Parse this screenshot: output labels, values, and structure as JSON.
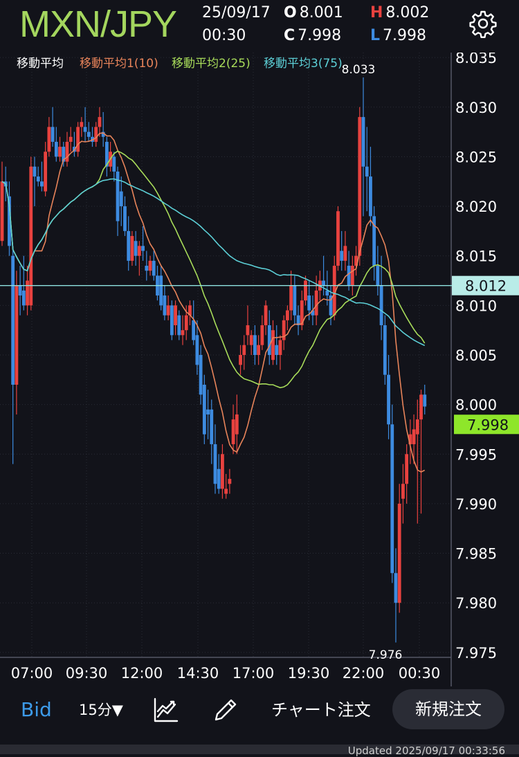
{
  "header": {
    "pair": "MXN/JPY",
    "date": "25/09/17",
    "time": "00:30",
    "open_label": "O",
    "open": "8.001",
    "high_label": "H",
    "high": "8.002",
    "close_label": "C",
    "close": "7.998",
    "low_label": "L",
    "low": "7.998",
    "settings_icon": "gear-icon"
  },
  "chart_data": {
    "type": "candlestick",
    "symbol": "MXN/JPY",
    "interval": "15分",
    "legend": {
      "title": "移動平均",
      "ma1": "移動平均1(10)",
      "ma2": "移動平均2(25)",
      "ma3": "移動平均3(75)"
    },
    "colors": {
      "up": "#e8423f",
      "down": "#3d8be0",
      "ma1": "#e8845a",
      "ma2": "#a8dc5a",
      "ma3": "#5ccfd6",
      "price_line": "#8fe3e0",
      "current_price_bg": "#8ee62a",
      "background": "#12131a"
    },
    "y_axis": {
      "range": [
        7.9745,
        8.0355
      ],
      "ticks": [
        "8.035",
        "8.030",
        "8.025",
        "8.020",
        "8.015",
        "8.010",
        "8.005",
        "8.000",
        "7.995",
        "7.990",
        "7.985",
        "7.980",
        "7.975"
      ]
    },
    "x_axis": {
      "ticks": [
        "07:00",
        "09:30",
        "12:00",
        "14:30",
        "17:00",
        "19:30",
        "22:00",
        "00:30"
      ]
    },
    "annotations": {
      "max_label": "8.033",
      "min_label": "7.976"
    },
    "price_line": {
      "value": 8.012,
      "label": "8.012"
    },
    "current_price": {
      "value": 7.998,
      "label": "7.998"
    },
    "candles": [
      [
        8.0165,
        8.0245,
        8.016,
        8.0225
      ],
      [
        8.0225,
        8.024,
        8.0205,
        8.022
      ],
      [
        8.021,
        8.0225,
        8.015,
        8.016
      ],
      [
        8.015,
        8.016,
        7.994,
        8.002
      ],
      [
        8.002,
        8.0135,
        7.999,
        8.012
      ],
      [
        8.012,
        8.014,
        8.009,
        8.011
      ],
      [
        8.0115,
        8.015,
        8.0095,
        8.01
      ],
      [
        8.01,
        8.014,
        8.009,
        8.0125
      ],
      [
        8.01,
        8.025,
        8.0095,
        8.024
      ],
      [
        8.024,
        8.025,
        8.02,
        8.023
      ],
      [
        8.023,
        8.024,
        8.022,
        8.0225
      ],
      [
        8.0225,
        8.0245,
        8.0215,
        8.022
      ],
      [
        8.0215,
        8.0265,
        8.021,
        8.0255
      ],
      [
        8.0255,
        8.029,
        8.025,
        8.028
      ],
      [
        8.028,
        8.03,
        8.026,
        8.0265
      ],
      [
        8.0265,
        8.028,
        8.0245,
        8.025
      ],
      [
        8.025,
        8.027,
        8.0245,
        8.026
      ],
      [
        8.026,
        8.0265,
        8.024,
        8.0245
      ],
      [
        8.0245,
        8.0275,
        8.024,
        8.0265
      ],
      [
        8.0265,
        8.028,
        8.0255,
        8.027
      ],
      [
        8.026,
        8.0275,
        8.025,
        8.0255
      ],
      [
        8.0255,
        8.0285,
        8.025,
        8.028
      ],
      [
        8.028,
        8.029,
        8.027,
        8.0285
      ],
      [
        8.028,
        8.03,
        8.0265,
        8.0275
      ],
      [
        8.0275,
        8.0285,
        8.0265,
        8.027
      ],
      [
        8.027,
        8.028,
        8.026,
        8.0265
      ],
      [
        8.0265,
        8.0285,
        8.026,
        8.028
      ],
      [
        8.028,
        8.03,
        8.027,
        8.029
      ],
      [
        8.0275,
        8.0295,
        8.026,
        8.027
      ],
      [
        8.0265,
        8.027,
        8.023,
        8.024
      ],
      [
        8.024,
        8.0265,
        8.0235,
        8.0255
      ],
      [
        8.025,
        8.0255,
        8.0225,
        8.0235
      ],
      [
        8.0235,
        8.024,
        8.017,
        8.0185
      ],
      [
        8.0215,
        8.023,
        8.018,
        8.02
      ],
      [
        8.02,
        8.021,
        8.017,
        8.0175
      ],
      [
        8.0175,
        8.019,
        8.0135,
        8.0145
      ],
      [
        8.0145,
        8.0175,
        8.014,
        8.017
      ],
      [
        8.0165,
        8.0175,
        8.014,
        8.015
      ],
      [
        8.015,
        8.0165,
        8.013,
        8.016
      ],
      [
        8.016,
        8.018,
        8.0145,
        8.0155
      ],
      [
        8.014,
        8.0155,
        8.0125,
        8.0135
      ],
      [
        8.0135,
        8.015,
        8.013,
        8.0145
      ],
      [
        8.0145,
        8.0155,
        8.0125,
        8.013
      ],
      [
        8.013,
        8.014,
        8.0105,
        8.011
      ],
      [
        8.013,
        8.014,
        8.0095,
        8.01
      ],
      [
        8.011,
        8.012,
        8.0085,
        8.009
      ],
      [
        8.009,
        8.011,
        8.0085,
        8.01
      ],
      [
        8.01,
        8.0105,
        8.0065,
        8.007
      ],
      [
        8.008,
        8.0105,
        8.007,
        8.01
      ],
      [
        8.009,
        8.0095,
        8.0065,
        8.007
      ],
      [
        8.007,
        8.009,
        8.006,
        8.0075
      ],
      [
        8.0075,
        8.01,
        8.0065,
        8.009
      ],
      [
        8.009,
        8.0105,
        8.008,
        8.01
      ],
      [
        8.0085,
        8.0105,
        8.006,
        8.0065
      ],
      [
        8.007,
        8.0085,
        8.003,
        8.004
      ],
      [
        8.005,
        8.006,
        8.0,
        8.001
      ],
      [
        8.002,
        8.003,
        7.996,
        7.997
      ],
      [
        7.9995,
        8.0015,
        7.9965,
        7.999
      ],
      [
        7.9995,
        8.0005,
        7.994,
        7.996
      ],
      [
        7.996,
        7.998,
        7.991,
        7.992
      ],
      [
        7.9935,
        7.995,
        7.991,
        7.9915
      ],
      [
        7.9915,
        7.996,
        7.9905,
        7.995
      ],
      [
        7.991,
        7.993,
        7.9905,
        7.9915
      ],
      [
        7.992,
        7.9935,
        7.991,
        7.9925
      ],
      [
        7.996,
        8.0,
        7.995,
        7.9985
      ],
      [
        7.997,
        8.001,
        7.995,
        7.999
      ],
      [
        8.004,
        8.006,
        8.003,
        8.005
      ],
      [
        8.005,
        8.007,
        8.0035,
        8.006
      ],
      [
        8.007,
        8.01,
        8.006,
        8.008
      ],
      [
        8.006,
        8.0075,
        8.005,
        8.007
      ],
      [
        8.007,
        8.008,
        8.004,
        8.005
      ],
      [
        8.005,
        8.007,
        8.004,
        8.006
      ],
      [
        8.006,
        8.009,
        8.0055,
        8.008
      ],
      [
        8.008,
        8.0105,
        8.007,
        8.01
      ],
      [
        8.008,
        8.0095,
        8.004,
        8.005
      ],
      [
        8.0045,
        8.0085,
        8.004,
        8.0075
      ],
      [
        8.006,
        8.008,
        8.004,
        8.005
      ],
      [
        8.005,
        8.007,
        8.0035,
        8.0065
      ],
      [
        8.0065,
        8.009,
        8.0055,
        8.0085
      ],
      [
        8.0085,
        8.01,
        8.0075,
        8.0095
      ],
      [
        8.0095,
        8.0135,
        8.0085,
        8.012
      ],
      [
        8.012,
        8.013,
        8.008,
        8.009
      ],
      [
        8.009,
        8.01,
        8.007,
        8.008
      ],
      [
        8.008,
        8.0115,
        8.0075,
        8.0105
      ],
      [
        8.0105,
        8.013,
        8.01,
        8.0125
      ],
      [
        8.011,
        8.0125,
        8.0085,
        8.0095
      ],
      [
        8.0095,
        8.011,
        8.008,
        8.009
      ],
      [
        8.009,
        8.013,
        8.008,
        8.0115
      ],
      [
        8.0115,
        8.0135,
        8.0105,
        8.0125
      ],
      [
        8.0125,
        8.015,
        8.011,
        8.012
      ],
      [
        8.0115,
        8.0135,
        8.01,
        8.011
      ],
      [
        8.011,
        8.012,
        8.008,
        8.009
      ],
      [
        8.009,
        8.015,
        8.0085,
        8.014
      ],
      [
        8.014,
        8.02,
        8.0135,
        8.0195
      ],
      [
        8.0155,
        8.0175,
        8.0135,
        8.0145
      ],
      [
        8.0145,
        8.0175,
        8.0135,
        8.016
      ],
      [
        8.014,
        8.0155,
        8.0115,
        8.012
      ],
      [
        8.012,
        8.015,
        8.011,
        8.014
      ],
      [
        8.014,
        8.016,
        8.013,
        8.015
      ],
      [
        8.015,
        8.03,
        8.014,
        8.029
      ],
      [
        8.029,
        8.033,
        8.019,
        8.024
      ],
      [
        8.024,
        8.028,
        8.0195,
        8.023
      ],
      [
        8.023,
        8.026,
        8.018,
        8.019
      ],
      [
        8.019,
        8.02,
        8.0125,
        8.014
      ],
      [
        8.014,
        8.016,
        8.011,
        8.012
      ],
      [
        8.012,
        8.015,
        8.0065,
        8.008
      ],
      [
        8.008,
        8.009,
        8.002,
        8.003
      ],
      [
        8.003,
        8.005,
        7.9965,
        7.998
      ],
      [
        7.998,
        8.0,
        7.982,
        7.983
      ],
      [
        7.983,
        7.9855,
        7.976,
        7.98
      ],
      [
        7.98,
        7.992,
        7.979,
        7.99
      ],
      [
        7.9905,
        7.994,
        7.988,
        7.992
      ],
      [
        7.992,
        7.996,
        7.99,
        7.995
      ],
      [
        7.996,
        7.9985,
        7.994,
        7.997
      ],
      [
        7.996,
        7.999,
        7.994,
        7.9975
      ],
      [
        7.997,
        8.0005,
        7.988,
        7.9985
      ],
      [
        7.9985,
        8.0015,
        7.989,
        8.001
      ],
      [
        8.001,
        8.002,
        7.999,
        7.9998
      ]
    ]
  },
  "toolbar": {
    "bid": "Bid",
    "interval": "15分▼",
    "indicator_icon": "indicator-icon",
    "draw_icon": "pencil-icon",
    "chart_order": "チャート注文",
    "new_order": "新規注文"
  },
  "footer": {
    "updated": "Updated 2025/09/17 00:33:56"
  }
}
